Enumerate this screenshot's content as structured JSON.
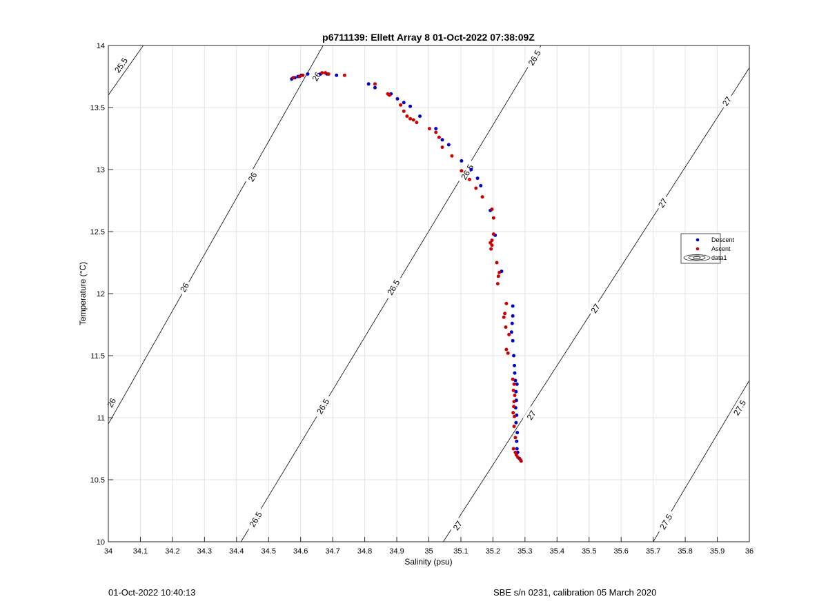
{
  "chart_data": {
    "type": "scatter",
    "title": "p6711139: Ellett Array 8 01-Oct-2022 07:38:09Z",
    "xlabel": "Salinity (psu)",
    "ylabel": "Temperature (°C)",
    "xlim": [
      34,
      36
    ],
    "ylim": [
      10,
      14
    ],
    "xticks": [
      "34",
      "34.1",
      "34.2",
      "34.3",
      "34.4",
      "34.5",
      "34.6",
      "34.7",
      "34.8",
      "34.9",
      "35",
      "35.1",
      "35.2",
      "35.3",
      "35.4",
      "35.5",
      "35.6",
      "35.7",
      "35.8",
      "35.9",
      "36"
    ],
    "yticks": [
      "10",
      "10.5",
      "11",
      "11.5",
      "12",
      "12.5",
      "13",
      "13.5",
      "14"
    ],
    "grid": true,
    "legend_position": "right",
    "legend": [
      "Descent",
      "Ascent",
      "data1"
    ],
    "colors": {
      "descent": "#0000cc",
      "ascent": "#cc0000",
      "contour": "#000000",
      "grid": "#e3e3e3"
    },
    "series": [
      {
        "name": "Descent",
        "points": [
          [
            34.572,
            13.73
          ],
          [
            34.582,
            13.74
          ],
          [
            34.592,
            13.75
          ],
          [
            34.602,
            13.76
          ],
          [
            34.622,
            13.77
          ],
          [
            34.662,
            13.77
          ],
          [
            34.682,
            13.77
          ],
          [
            34.712,
            13.76
          ],
          [
            34.812,
            13.69
          ],
          [
            34.832,
            13.66
          ],
          [
            34.882,
            13.61
          ],
          [
            34.902,
            13.57
          ],
          [
            34.922,
            13.54
          ],
          [
            34.942,
            13.51
          ],
          [
            34.972,
            13.43
          ],
          [
            35.022,
            13.33
          ],
          [
            35.042,
            13.24
          ],
          [
            35.062,
            13.2
          ],
          [
            35.102,
            13.07
          ],
          [
            35.132,
            13.0
          ],
          [
            35.152,
            12.93
          ],
          [
            35.162,
            12.87
          ],
          [
            35.192,
            12.67
          ],
          [
            35.207,
            12.47
          ],
          [
            35.227,
            12.18
          ],
          [
            35.262,
            11.9
          ],
          [
            35.262,
            11.82
          ],
          [
            35.26,
            11.76
          ],
          [
            35.258,
            11.69
          ],
          [
            35.262,
            11.62
          ],
          [
            35.265,
            11.5
          ],
          [
            35.267,
            11.42
          ],
          [
            35.268,
            11.36
          ],
          [
            35.27,
            11.3
          ],
          [
            35.275,
            11.27
          ],
          [
            35.272,
            11.21
          ],
          [
            35.273,
            11.14
          ],
          [
            35.271,
            11.08
          ],
          [
            35.274,
            11.02
          ],
          [
            35.272,
            10.96
          ],
          [
            35.276,
            10.88
          ],
          [
            35.274,
            10.81
          ],
          [
            35.275,
            10.75
          ],
          [
            35.277,
            10.72
          ],
          [
            35.283,
            10.67
          ]
        ]
      },
      {
        "name": "Ascent",
        "points": [
          [
            34.577,
            13.74
          ],
          [
            34.597,
            13.75
          ],
          [
            34.607,
            13.76
          ],
          [
            34.667,
            13.78
          ],
          [
            34.677,
            13.78
          ],
          [
            34.687,
            13.77
          ],
          [
            34.737,
            13.76
          ],
          [
            34.832,
            13.69
          ],
          [
            34.872,
            13.61
          ],
          [
            34.877,
            13.6
          ],
          [
            34.912,
            13.52
          ],
          [
            34.922,
            13.47
          ],
          [
            34.932,
            13.43
          ],
          [
            34.942,
            13.41
          ],
          [
            34.952,
            13.4
          ],
          [
            34.962,
            13.38
          ],
          [
            35.002,
            13.33
          ],
          [
            35.022,
            13.3
          ],
          [
            35.032,
            13.26
          ],
          [
            35.042,
            13.18
          ],
          [
            35.072,
            13.11
          ],
          [
            35.102,
            12.99
          ],
          [
            35.127,
            12.92
          ],
          [
            35.147,
            12.85
          ],
          [
            35.167,
            12.78
          ],
          [
            35.197,
            12.68
          ],
          [
            35.202,
            12.61
          ],
          [
            35.202,
            12.48
          ],
          [
            35.197,
            12.43
          ],
          [
            35.192,
            12.41
          ],
          [
            35.197,
            12.39
          ],
          [
            35.194,
            12.36
          ],
          [
            35.212,
            12.25
          ],
          [
            35.22,
            12.17
          ],
          [
            35.217,
            12.14
          ],
          [
            35.215,
            12.08
          ],
          [
            35.242,
            11.92
          ],
          [
            35.237,
            11.84
          ],
          [
            35.234,
            11.81
          ],
          [
            35.24,
            11.73
          ],
          [
            35.25,
            11.67
          ],
          [
            35.242,
            11.55
          ],
          [
            35.247,
            11.52
          ],
          [
            35.262,
            11.31
          ],
          [
            35.266,
            11.27
          ],
          [
            35.264,
            11.22
          ],
          [
            35.268,
            11.18
          ],
          [
            35.266,
            11.13
          ],
          [
            35.265,
            11.09
          ],
          [
            35.263,
            11.04
          ],
          [
            35.267,
            11.01
          ],
          [
            35.266,
            10.93
          ],
          [
            35.27,
            10.84
          ],
          [
            35.264,
            10.75
          ],
          [
            35.27,
            10.72
          ],
          [
            35.273,
            10.7
          ],
          [
            35.278,
            10.68
          ],
          [
            35.286,
            10.66
          ],
          [
            35.288,
            10.65
          ]
        ]
      }
    ],
    "contours": [
      {
        "level": "25.5",
        "from": [
          34.0,
          13.6
        ],
        "to": [
          34.109,
          14.0
        ],
        "labels": [
          [
            34.04,
            13.84
          ]
        ]
      },
      {
        "level": "26",
        "from": [
          34.0,
          10.95
        ],
        "to": [
          34.67,
          14.0
        ],
        "labels": [
          [
            34.01,
            11.12
          ],
          [
            34.238,
            12.05
          ],
          [
            34.45,
            12.94
          ],
          [
            34.65,
            13.75
          ]
        ]
      },
      {
        "level": "26.5",
        "from": [
          34.414,
          10.0
        ],
        "to": [
          35.35,
          14.0
        ],
        "labels": [
          [
            34.46,
            10.18
          ],
          [
            34.67,
            11.09
          ],
          [
            34.89,
            12.05
          ],
          [
            35.12,
            12.98
          ],
          [
            35.33,
            13.9
          ]
        ]
      },
      {
        "level": "27",
        "from": [
          35.045,
          10.0
        ],
        "to": [
          36.0,
          13.82
        ],
        "labels": [
          [
            35.09,
            10.13
          ],
          [
            35.32,
            11.02
          ],
          [
            35.52,
            11.88
          ],
          [
            35.73,
            12.73
          ],
          [
            35.93,
            13.55
          ]
        ]
      },
      {
        "level": "27.5",
        "from": [
          35.7,
          10.0
        ],
        "to": [
          36.0,
          11.3
        ],
        "labels": [
          [
            35.74,
            10.16
          ],
          [
            35.97,
            11.08
          ]
        ]
      }
    ]
  },
  "footer": {
    "left": "01-Oct-2022 10:40:13",
    "right": "SBE s/n 0231, calibration 05 March 2020"
  }
}
